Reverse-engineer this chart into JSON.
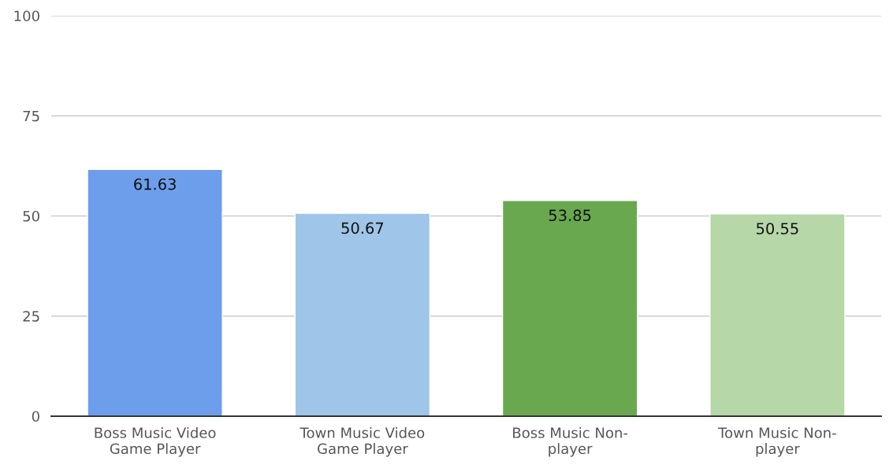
{
  "chart_data": {
    "type": "bar",
    "categories": [
      "Boss Music Video\nGame Player",
      "Town Music Video\nGame Player",
      "Boss Music Non-\nplayer",
      "Town Music Non-\nplayer"
    ],
    "values": [
      61.63,
      50.67,
      53.85,
      50.55
    ],
    "colors": [
      "#6d9eeb",
      "#9fc5e8",
      "#6aa84f",
      "#b6d7a8"
    ],
    "ylim": [
      0,
      100
    ],
    "yticks": [
      0,
      25,
      50,
      75,
      100
    ],
    "grid": "y",
    "data_labels": true,
    "legend": false
  }
}
